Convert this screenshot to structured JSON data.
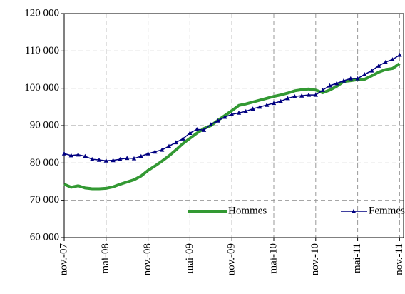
{
  "chart_data": {
    "type": "line",
    "categories": [
      "nov.-07",
      null,
      null,
      null,
      null,
      null,
      "mai-08",
      null,
      null,
      null,
      null,
      null,
      "nov.-08",
      null,
      null,
      null,
      null,
      null,
      "mai-09",
      null,
      null,
      null,
      null,
      null,
      "nov.-09",
      null,
      null,
      null,
      null,
      null,
      "mai-10",
      null,
      null,
      null,
      null,
      null,
      "nov.-10",
      null,
      null,
      null,
      null,
      null,
      "mai-11",
      null,
      null,
      null,
      null,
      null,
      "nov.-11"
    ],
    "series": [
      {
        "name": "Hommes",
        "color": "#339933",
        "values": [
          74300,
          73500,
          73900,
          73300,
          73100,
          73100,
          73200,
          73600,
          74300,
          74900,
          75500,
          76500,
          78000,
          79200,
          80500,
          81900,
          83500,
          85200,
          86600,
          88000,
          89200,
          90000,
          91400,
          92700,
          94000,
          95400,
          95800,
          96300,
          96800,
          97300,
          97800,
          98200,
          98700,
          99300,
          99600,
          99800,
          99500,
          98800,
          99500,
          100500,
          101800,
          102000,
          102300,
          102400,
          103300,
          104300,
          105000,
          105300,
          106600
        ]
      },
      {
        "name": "Femmes",
        "color": "#000080",
        "values": [
          82500,
          82000,
          82200,
          81800,
          81000,
          80800,
          80600,
          80700,
          81000,
          81300,
          81200,
          81800,
          82500,
          83000,
          83500,
          84500,
          85500,
          86500,
          88000,
          89000,
          88800,
          90300,
          91300,
          92300,
          93000,
          93400,
          93800,
          94500,
          95000,
          95500,
          96000,
          96500,
          97300,
          97800,
          98000,
          98200,
          98200,
          99500,
          100700,
          101300,
          102000,
          102600,
          102600,
          103700,
          104700,
          106000,
          107000,
          107700,
          108900
        ]
      }
    ],
    "ylim": [
      60000,
      120000
    ],
    "yticks": [
      {
        "value": 60000,
        "label": "60 000"
      },
      {
        "value": 70000,
        "label": "70 000"
      },
      {
        "value": 80000,
        "label": "80 000"
      },
      {
        "value": 90000,
        "label": "90 000"
      },
      {
        "value": 100000,
        "label": "100 000"
      },
      {
        "value": 110000,
        "label": "110 000"
      },
      {
        "value": 120000,
        "label": "120 000"
      }
    ],
    "grid": true,
    "legend": "lower right"
  }
}
